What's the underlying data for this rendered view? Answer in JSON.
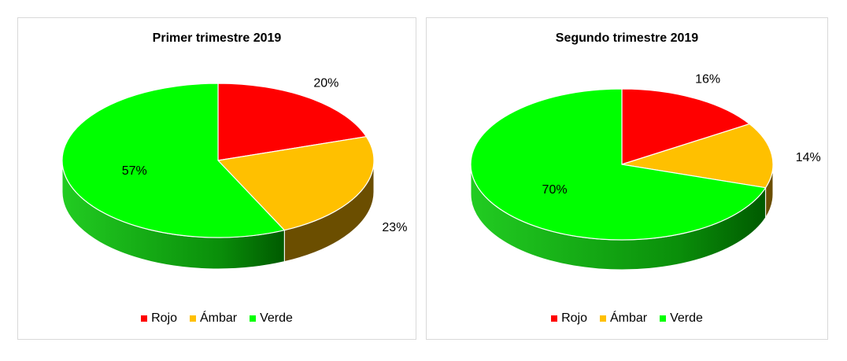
{
  "colors": {
    "rojo": "#ff0000",
    "rojo_side": "#8b0000",
    "ambar": "#ffc000",
    "ambar_side": "#6b4e00",
    "verde": "#00ff00",
    "verde_side_light": "#22cc22",
    "verde_side_dark": "#005a00"
  },
  "chart_data": [
    {
      "type": "pie",
      "title": "Primer trimestre  2019",
      "categories": [
        "Rojo",
        "Ámbar",
        "Verde"
      ],
      "values": [
        20,
        23,
        57
      ],
      "data_labels": [
        "20%",
        "23%",
        "57%"
      ],
      "legend": [
        "Rojo",
        "Ámbar",
        "Verde"
      ],
      "legend_position": "bottom",
      "style": "3d"
    },
    {
      "type": "pie",
      "title": "Segundo trimestre  2019",
      "categories": [
        "Rojo",
        "Ámbar",
        "Verde"
      ],
      "values": [
        16,
        14,
        70
      ],
      "data_labels": [
        "16%",
        "14%",
        "70%"
      ],
      "legend": [
        "Rojo",
        "Ámbar",
        "Verde"
      ],
      "legend_position": "bottom",
      "style": "3d"
    }
  ]
}
